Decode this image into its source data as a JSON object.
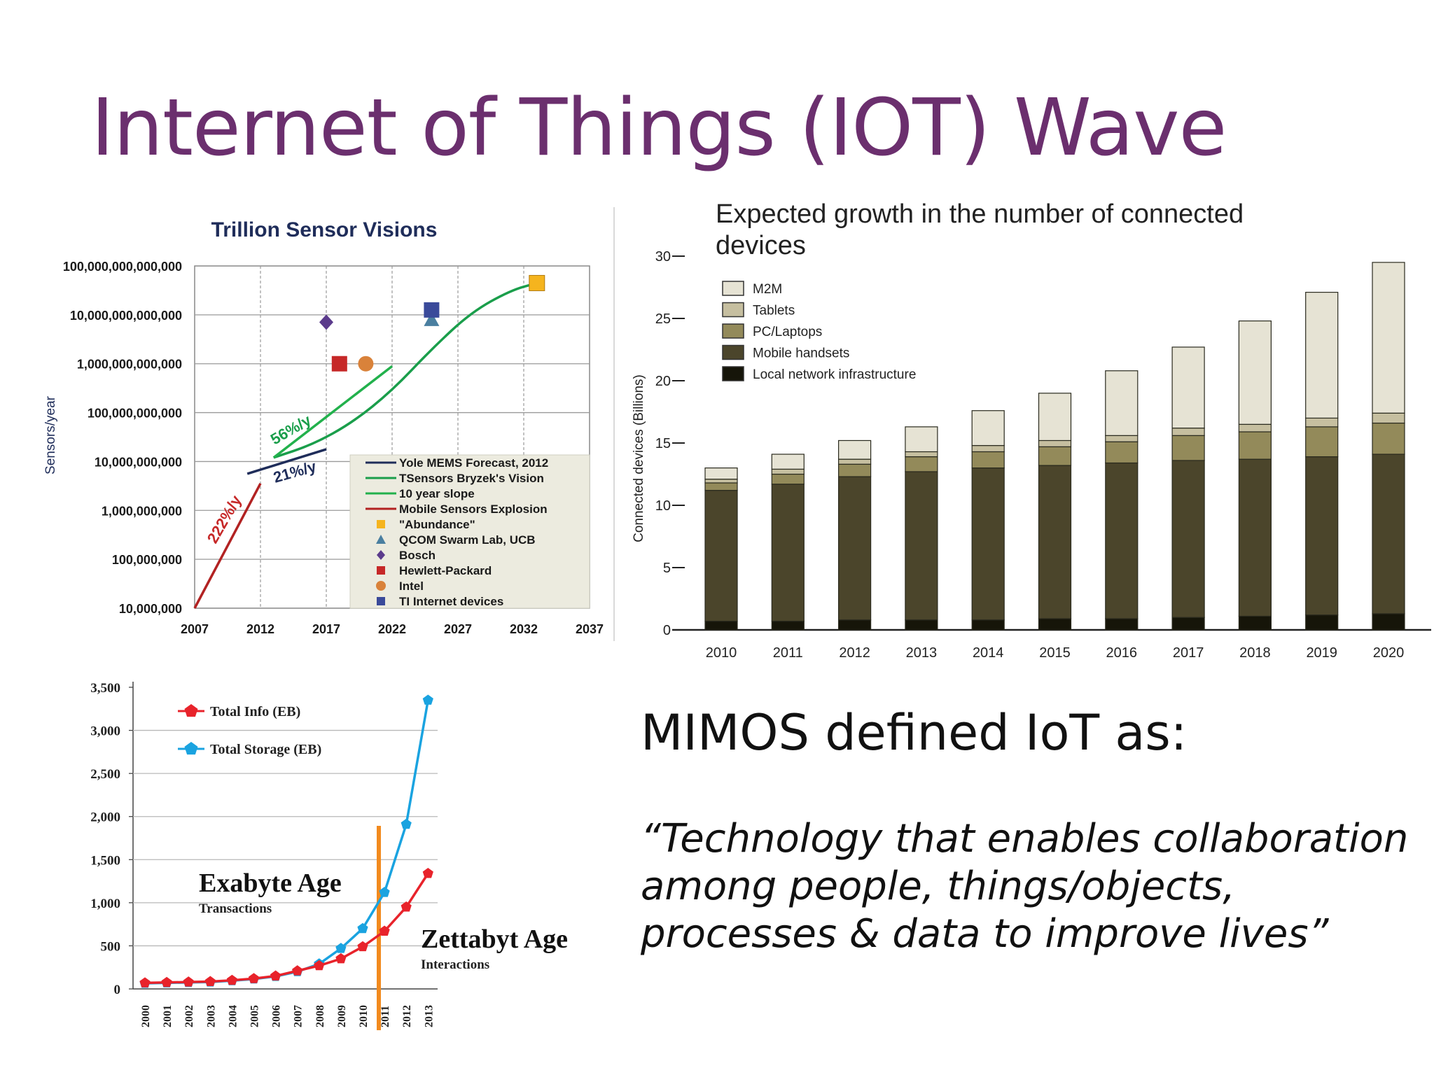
{
  "slide": {
    "title": "Internet of Things (IOT) Wave",
    "mimos_heading": "MIMOS defined IoT as:",
    "mimos_quote": "“Technology that enables collaboration among people, things/objects, processes  & data to improve lives”"
  },
  "chart_data": [
    {
      "id": "sensor",
      "type": "line",
      "title": "Trillion Sensor Visions",
      "ylabel": "Sensors/year",
      "xlim": [
        2007,
        2037
      ],
      "x_ticks": [
        "2007",
        "2012",
        "2017",
        "2022",
        "2027",
        "2032",
        "2037"
      ],
      "y_log": true,
      "y_ticks": [
        "10,000,000",
        "100,000,000",
        "1,000,000,000",
        "10,000,000,000",
        "100,000,000,000",
        "1,000,000,000,000",
        "10,000,000,000,000",
        "100,000,000,000,000"
      ],
      "ylim_exp": [
        7,
        14
      ],
      "grid": true,
      "legend_position": "bottom-right",
      "series": [
        {
          "name": "Yole MEMS Forecast, 2012",
          "kind": "line",
          "color": "#1f2d5a",
          "points": [
            [
              2011,
              9.75
            ],
            [
              2017,
              10.25
            ]
          ]
        },
        {
          "name": "TSensors Bryzek's Vision",
          "kind": "line",
          "color": "#1a9e4b",
          "points": [
            [
              2013,
              10.08
            ],
            [
              2016,
              10.35
            ],
            [
              2019,
              10.8
            ],
            [
              2022,
              11.45
            ],
            [
              2025,
              12.3
            ],
            [
              2028,
              13.05
            ],
            [
              2031,
              13.5
            ],
            [
              2033,
              13.65
            ]
          ]
        },
        {
          "name": "10 year slope",
          "kind": "line",
          "color": "#22b14c",
          "points": [
            [
              2013,
              10.08
            ],
            [
              2022,
              11.95
            ]
          ]
        },
        {
          "name": "Mobile Sensors Explosion",
          "kind": "line",
          "color": "#b22222",
          "points": [
            [
              2007,
              7.0
            ],
            [
              2012,
              9.55
            ]
          ]
        },
        {
          "name": "\"Abundance\"",
          "kind": "marker",
          "shape": "square",
          "color": "#f5b41e",
          "points": [
            [
              2033,
              13.65
            ]
          ]
        },
        {
          "name": "QCOM Swarm Lab, UCB",
          "kind": "marker",
          "shape": "triangle",
          "color": "#4a7fa0",
          "points": [
            [
              2025,
              12.9
            ]
          ]
        },
        {
          "name": "Bosch",
          "kind": "marker",
          "shape": "diamond",
          "color": "#5b3b8c",
          "points": [
            [
              2017,
              12.85
            ]
          ]
        },
        {
          "name": "Hewlett-Packard",
          "kind": "marker",
          "shape": "square",
          "color": "#c62828",
          "points": [
            [
              2018,
              12.0
            ]
          ]
        },
        {
          "name": "Intel",
          "kind": "marker",
          "shape": "circle",
          "color": "#d9823a",
          "points": [
            [
              2020,
              12.0
            ]
          ]
        },
        {
          "name": "TI Internet devices",
          "kind": "marker",
          "shape": "square",
          "color": "#3a4a9a",
          "points": [
            [
              2025,
              13.1
            ]
          ]
        }
      ],
      "annotations": [
        {
          "text": "56%/y",
          "color": "#1a9e4b"
        },
        {
          "text": "21%/y",
          "color": "#1f2d5a"
        },
        {
          "text": "222%/y",
          "color": "#c62828"
        }
      ]
    },
    {
      "id": "devices",
      "type": "bar",
      "title": "Expected growth in the number of connected devices",
      "ylabel": "Connected devices (Billions)",
      "ylim": [
        0,
        30
      ],
      "y_ticks": [
        "0",
        "5",
        "10",
        "15",
        "20",
        "25",
        "30"
      ],
      "stacked": true,
      "legend_position": "top-left",
      "categories": [
        "2010",
        "2011",
        "2012",
        "2013",
        "2014",
        "2015",
        "2016",
        "2017",
        "2018",
        "2019",
        "2020"
      ],
      "series": [
        {
          "name": "Local network infrastructure",
          "color": "#161509",
          "values": [
            0.7,
            0.7,
            0.8,
            0.8,
            0.8,
            0.9,
            0.9,
            1.0,
            1.1,
            1.2,
            1.3
          ]
        },
        {
          "name": "Mobile handsets",
          "color": "#4b452b",
          "values": [
            10.5,
            11.0,
            11.5,
            11.9,
            12.2,
            12.3,
            12.5,
            12.6,
            12.6,
            12.7,
            12.8
          ]
        },
        {
          "name": "PC/Laptops",
          "color": "#938a5a",
          "values": [
            0.6,
            0.8,
            1.0,
            1.2,
            1.3,
            1.5,
            1.7,
            2.0,
            2.2,
            2.4,
            2.5
          ]
        },
        {
          "name": "Tablets",
          "color": "#c6bfa0",
          "values": [
            0.3,
            0.4,
            0.4,
            0.4,
            0.5,
            0.5,
            0.5,
            0.6,
            0.6,
            0.7,
            0.8
          ]
        },
        {
          "name": "M2M",
          "color": "#e6e3d4",
          "values": [
            0.9,
            1.2,
            1.5,
            2.0,
            2.8,
            3.8,
            5.2,
            6.5,
            8.3,
            10.1,
            12.1
          ]
        }
      ]
    },
    {
      "id": "exabyte",
      "type": "line",
      "ylim": [
        0,
        3500
      ],
      "y_ticks": [
        "0",
        "500",
        "1,000",
        "1,500",
        "2,000",
        "2,500",
        "3,000",
        "3,500"
      ],
      "categories": [
        "2000",
        "2001",
        "2002",
        "2003",
        "2004",
        "2005",
        "2006",
        "2007",
        "2008",
        "2009",
        "2010",
        "2011",
        "2012",
        "2013"
      ],
      "legend_position": "top-left",
      "series": [
        {
          "name": "Total Info (EB)",
          "color": "#e8232b",
          "values": [
            70,
            75,
            80,
            85,
            100,
            120,
            150,
            210,
            270,
            350,
            490,
            670,
            950,
            1340
          ]
        },
        {
          "name": "Total Storage (EB)",
          "color": "#1aa3e0",
          "values": [
            65,
            70,
            75,
            80,
            95,
            115,
            145,
            200,
            290,
            470,
            700,
            1120,
            1910,
            3350
          ]
        }
      ],
      "annotations": [
        {
          "text": "Exabyte Age",
          "sub": "Transactions"
        },
        {
          "text": "Zettabyt Age",
          "sub": "Interactions"
        }
      ]
    }
  ]
}
